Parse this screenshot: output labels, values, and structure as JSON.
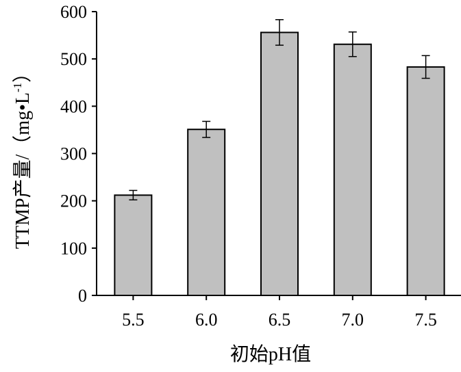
{
  "chart_data": {
    "type": "bar",
    "categories": [
      "5.5",
      "6.0",
      "6.5",
      "7.0",
      "7.5"
    ],
    "series": [
      {
        "values": [
          212,
          351,
          556,
          531,
          483
        ],
        "error": [
          10,
          17,
          27,
          26,
          24
        ],
        "color": "#c0c0c0"
      }
    ],
    "xlabel": "初始pH值",
    "ylabel_main": "TTMP产量/（mg•L",
    "ylabel_sup": "-1",
    "ylabel_tail": "）",
    "ylim": [
      0,
      600
    ],
    "yticks": [
      0,
      100,
      200,
      300,
      400,
      500,
      600
    ],
    "grid": false,
    "legend": "none"
  }
}
